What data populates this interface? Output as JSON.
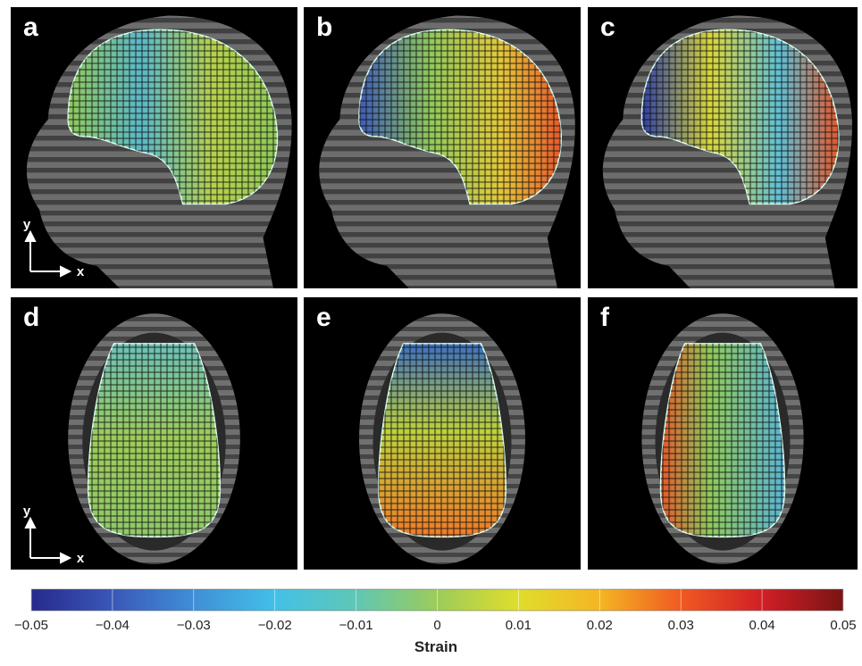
{
  "panels": [
    {
      "label": "a",
      "view": "sagittal",
      "axes": true
    },
    {
      "label": "b",
      "view": "sagittal",
      "axes": false
    },
    {
      "label": "c",
      "view": "sagittal",
      "axes": false
    },
    {
      "label": "d",
      "view": "axial",
      "axes": true
    },
    {
      "label": "e",
      "view": "axial",
      "axes": false
    },
    {
      "label": "f",
      "view": "axial",
      "axes": false
    }
  ],
  "axis_labels": {
    "x": "x",
    "y": "y"
  },
  "colorbar": {
    "title": "Strain",
    "min": -0.05,
    "max": 0.05,
    "ticks": [
      "−0.05",
      "−0.04",
      "−0.03",
      "−0.02",
      "−0.01",
      "0",
      "0.01",
      "0.02",
      "0.03",
      "0.04",
      "0.05"
    ],
    "colors": [
      "#262a8c",
      "#3a58b8",
      "#3f8fd6",
      "#43c0e8",
      "#5fc7b4",
      "#9ccc5a",
      "#e0dd2c",
      "#f5b523",
      "#ef5a22",
      "#d11f26",
      "#7a1414"
    ]
  }
}
